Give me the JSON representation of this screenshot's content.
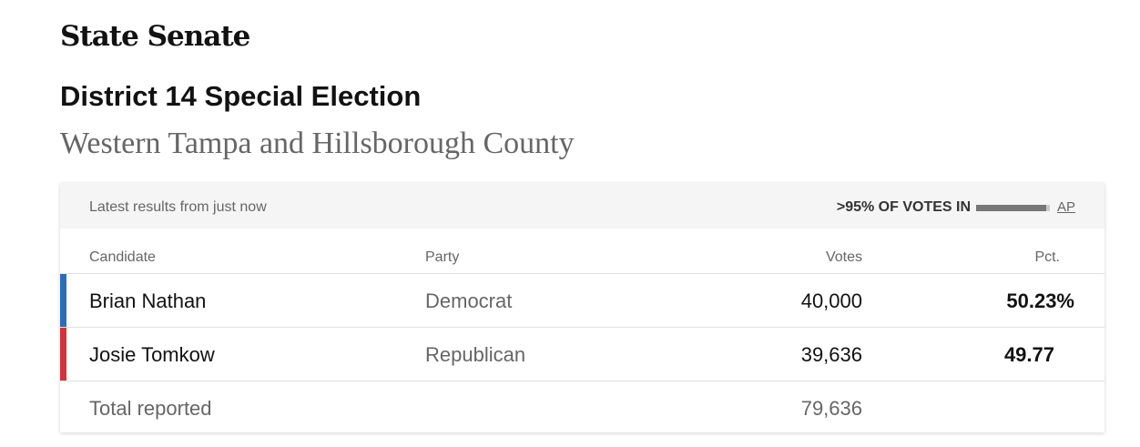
{
  "header": {
    "title": "State Senate",
    "subtitle": "District 14 Special Election",
    "region": "Western Tampa and Hillsborough County"
  },
  "status": {
    "latest": "Latest results from just now",
    "votes_in": ">95% OF VOTES IN",
    "reporting_fraction": 0.95,
    "source": "AP"
  },
  "columns": {
    "candidate": "Candidate",
    "party": "Party",
    "votes": "Votes",
    "pct": "Pct."
  },
  "candidates": [
    {
      "name": "Brian Nathan",
      "party": "Democrat",
      "votes": "40,000",
      "pct": "50.23%",
      "color": "#2f6cb5"
    },
    {
      "name": "Josie Tomkow",
      "party": "Republican",
      "votes": "39,636",
      "pct": "49.77",
      "color": "#d0343f"
    }
  ],
  "total": {
    "label": "Total reported",
    "votes": "79,636"
  }
}
